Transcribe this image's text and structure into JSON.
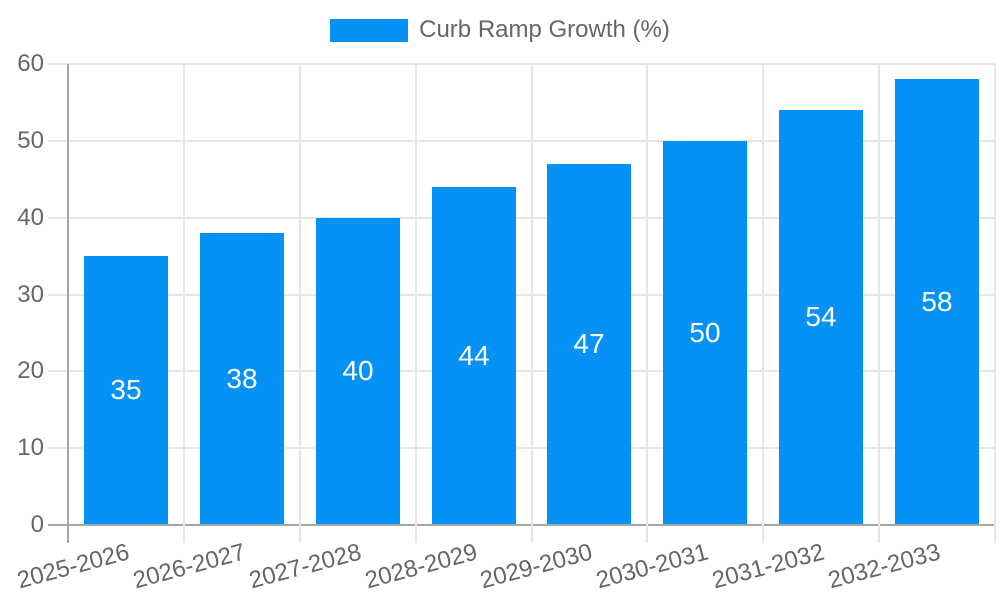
{
  "chart_data": {
    "type": "bar",
    "title": "",
    "xlabel": "",
    "ylabel": "",
    "categories": [
      "2025-2026",
      "2026-2027",
      "2027-2028",
      "2028-2029",
      "2029-2030",
      "2030-2031",
      "2031-2032",
      "2032-2033"
    ],
    "series": [
      {
        "name": "Curb Ramp Growth (%)",
        "values": [
          35,
          38,
          40,
          44,
          47,
          50,
          54,
          58
        ]
      }
    ],
    "ylim": [
      0,
      60
    ],
    "yticks": [
      0,
      10,
      20,
      30,
      40,
      50,
      60
    ],
    "grid": true,
    "legend_position": "top",
    "bar_value_labels": [
      35,
      38,
      40,
      44,
      47,
      50,
      54,
      58
    ],
    "colors": {
      "bar": "#0591f5",
      "grid": "#e6e6e6",
      "axis": "#a6a6a6",
      "tick_text": "#666666",
      "bar_label_text": "#ffffff",
      "legend_text": "#666666",
      "background": "#ffffff"
    }
  }
}
